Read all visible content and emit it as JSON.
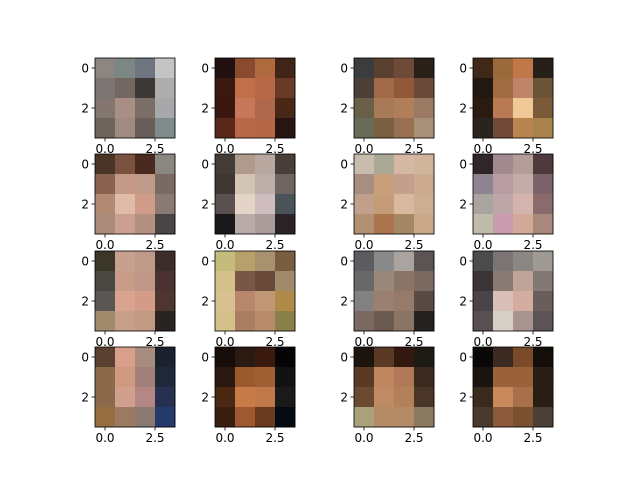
{
  "chart_data": {
    "type": "heatmap",
    "layout": "4x4 grid of image subplots",
    "xlim": [
      -0.5,
      3.5
    ],
    "ylim": [
      3.5,
      -0.5
    ],
    "xticks": [
      0.0,
      2.5
    ],
    "xtick_labels": [
      "0.0",
      "2.5"
    ],
    "yticks": [
      0,
      2
    ],
    "ytick_labels": [
      "0",
      "2"
    ],
    "title": "",
    "xlabel": "",
    "ylabel": "",
    "panels": [
      {
        "cells": [
          [
            "#8c8580",
            "#7a8782",
            "#6e7480",
            "#c5c4c5"
          ],
          [
            "#7a7472",
            "#746660",
            "#3c3836",
            "#aeadae"
          ],
          [
            "#837670",
            "#a88e84",
            "#7a6e66",
            "#a7a8aa"
          ],
          [
            "#6e625c",
            "#a08b80",
            "#675e58",
            "#7e8a8c"
          ]
        ]
      },
      {
        "cells": [
          [
            "#221010",
            "#8a4a30",
            "#b06a40",
            "#402418"
          ],
          [
            "#3a1a10",
            "#c07048",
            "#b86a48",
            "#6a3a28"
          ],
          [
            "#3a1810",
            "#c87858",
            "#b0684c",
            "#4a2818"
          ],
          [
            "#5a2818",
            "#b86848",
            "#b46848",
            "#281410"
          ]
        ]
      },
      {
        "cells": [
          [
            "#3a3c3e",
            "#5a4030",
            "#704a38",
            "#2a201a"
          ],
          [
            "#4a4038",
            "#a06a48",
            "#905838",
            "#6a4a38"
          ],
          [
            "#6a6048",
            "#a87a58",
            "#b07e58",
            "#9a7a62"
          ],
          [
            "#6a6a58",
            "#7a6040",
            "#9a7052",
            "#a89078"
          ]
        ]
      },
      {
        "cells": [
          [
            "#402818",
            "#9a6a3a",
            "#c07848",
            "#262018"
          ],
          [
            "#221810",
            "#a06a42",
            "#c08468",
            "#6a5438"
          ],
          [
            "#2a1a10",
            "#b87a52",
            "#f0c898",
            "#7a5a38"
          ],
          [
            "#2a2420",
            "#724838",
            "#ba844e",
            "#a8844c"
          ]
        ]
      },
      {
        "cells": [
          [
            "#4a3428",
            "#7a5240",
            "#4a2a1e",
            "#8a8680"
          ],
          [
            "#8a6252",
            "#c49a86",
            "#c09a88",
            "#7a6a62"
          ],
          [
            "#b08a72",
            "#e0bca8",
            "#d09c88",
            "#8a7a74"
          ],
          [
            "#aa8a78",
            "#caa090",
            "#b49080",
            "#4a4444"
          ]
        ]
      },
      {
        "cells": [
          [
            "#443c36",
            "#b09a8c",
            "#b8a8a0",
            "#483e3a"
          ],
          [
            "#403634",
            "#d4c4b4",
            "#bcaea8",
            "#6e6462"
          ],
          [
            "#5a5050",
            "#e4d4c8",
            "#cebcbe",
            "#4a5458"
          ],
          [
            "#1a1818",
            "#b8aaa8",
            "#aa9c9a",
            "#2a2428"
          ]
        ]
      },
      {
        "cells": [
          [
            "#c8bcac",
            "#aaa896",
            "#d4b8a4",
            "#d0b49c"
          ],
          [
            "#a88e80",
            "#c89e7c",
            "#c4a08c",
            "#ccaa90"
          ],
          [
            "#c0a08a",
            "#c49c78",
            "#d8b89e",
            "#ccae92"
          ],
          [
            "#b29074",
            "#aa744e",
            "#a48866",
            "#caa88a"
          ]
        ]
      },
      {
        "cells": [
          [
            "#2e2628",
            "#a08a90",
            "#b49c98",
            "#4e3a3c"
          ],
          [
            "#8e8490",
            "#b89ca4",
            "#c4aca8",
            "#7a6268"
          ],
          [
            "#aaa4a0",
            "#bca6a8",
            "#d4b4ac",
            "#8a6a6a"
          ],
          [
            "#c0bcac",
            "#c89cac",
            "#d4a898",
            "#a8887a"
          ]
        ]
      },
      {
        "cells": [
          [
            "#3a3628",
            "#c8a090",
            "#c09a88",
            "#3e2c28"
          ],
          [
            "#4a4642",
            "#c89c88",
            "#c09688",
            "#4a3230"
          ],
          [
            "#5a5654",
            "#d8a490",
            "#d49c88",
            "#4e3630"
          ],
          [
            "#a08c6c",
            "#c8a08a",
            "#c09a82",
            "#2a2420"
          ]
        ]
      },
      {
        "cells": [
          [
            "#c4bc7c",
            "#b8a06a",
            "#a8926e",
            "#7a5c40"
          ],
          [
            "#d4c08a",
            "#7a5646",
            "#6a4a3a",
            "#a08a6a"
          ],
          [
            "#d8c090",
            "#b8866a",
            "#c09878",
            "#b08a48"
          ],
          [
            "#d4c088",
            "#aa7e62",
            "#b88c6a",
            "#8a8048"
          ]
        ]
      },
      {
        "cells": [
          [
            "#5a5c60",
            "#8a8a8a",
            "#aaa4a0",
            "#5a5454"
          ],
          [
            "#6a6866",
            "#9a887a",
            "#8a7468",
            "#7a6a62"
          ],
          [
            "#828080",
            "#9a8070",
            "#967a6a",
            "#5a4a44"
          ],
          [
            "#7a6a62",
            "#6a5a50",
            "#8a7466",
            "#262222"
          ]
        ]
      },
      {
        "cells": [
          [
            "#4a4c4c",
            "#7a7474",
            "#8a8684",
            "#a09a94"
          ],
          [
            "#3a3436",
            "#8a7a74",
            "#c0a498",
            "#847874"
          ],
          [
            "#4a4448",
            "#d8c0b8",
            "#d4aca0",
            "#6a5e5c"
          ],
          [
            "#5a5054",
            "#d4d0c8",
            "#a89490",
            "#5a5454"
          ]
        ]
      },
      {
        "cells": [
          [
            "#5a4030",
            "#d8a08a",
            "#a88c7e",
            "#1a2230"
          ],
          [
            "#8a6a48",
            "#d09a80",
            "#a08078",
            "#1e2838"
          ],
          [
            "#8a6a48",
            "#d0a08c",
            "#b48684",
            "#263050"
          ],
          [
            "#946e40",
            "#9a7a62",
            "#8a7a70",
            "#243a6a"
          ]
        ]
      },
      {
        "cells": [
          [
            "#160c08",
            "#2a1a12",
            "#3a1a0e",
            "#050406"
          ],
          [
            "#2a1810",
            "#9a5a2e",
            "#a06034",
            "#121212"
          ],
          [
            "#4a2812",
            "#c87a48",
            "#c07a4a",
            "#1a1a1a"
          ],
          [
            "#3a1e10",
            "#a05830",
            "#6a3a20",
            "#050a12"
          ]
        ]
      },
      {
        "cells": [
          [
            "#1e140e",
            "#5a3a24",
            "#32180e",
            "#1e1a16"
          ],
          [
            "#5a3a24",
            "#c08660",
            "#b07a58",
            "#3a2a20"
          ],
          [
            "#6a4a30",
            "#c08a62",
            "#b4805a",
            "#4a3628"
          ],
          [
            "#aaa07a",
            "#b48a66",
            "#b48a66",
            "#8a7a62"
          ]
        ]
      },
      {
        "cells": [
          [
            "#0a0806",
            "#3a2a22",
            "#7a4a2a",
            "#140e0a"
          ],
          [
            "#1a1410",
            "#9a6238",
            "#9a6238",
            "#2a1e16"
          ],
          [
            "#3a2a1c",
            "#c88a5a",
            "#a8704a",
            "#2a1e14"
          ],
          [
            "#4a3a2c",
            "#8a5a3a",
            "#7a5030",
            "#4a4038"
          ]
        ]
      }
    ]
  }
}
